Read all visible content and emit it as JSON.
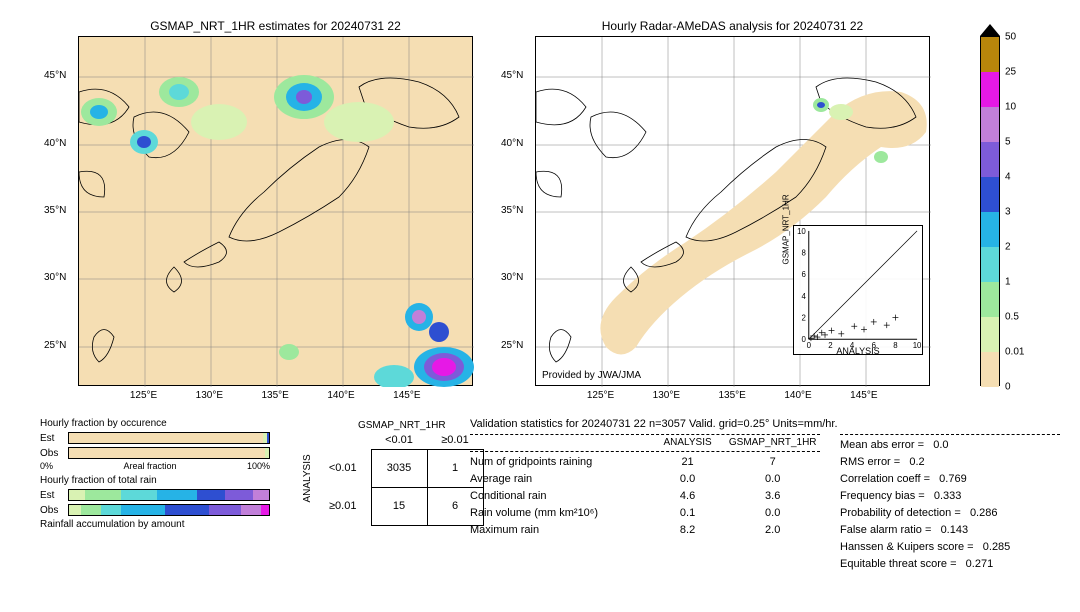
{
  "left_map": {
    "title": "GSMAP_NRT_1HR estimates for 20240731 22",
    "bg_color": "#f5deb3",
    "x_ticks": [
      "125°E",
      "130°E",
      "135°E",
      "140°E",
      "145°E"
    ],
    "y_ticks": [
      "25°N",
      "30°N",
      "35°N",
      "40°N",
      "45°N"
    ],
    "lon_min": 120,
    "lon_max": 150,
    "lat_min": 22,
    "lat_max": 48
  },
  "right_map": {
    "title": "Hourly Radar-AMeDAS analysis for 20240731 22",
    "bg_color": "#ffffff",
    "provider": "Provided by JWA/JMA",
    "x_ticks": [
      "125°E",
      "130°E",
      "135°E",
      "140°E",
      "145°E"
    ],
    "y_ticks": [
      "25°N",
      "30°N",
      "35°N",
      "40°N",
      "45°N"
    ]
  },
  "colorbar": {
    "levels": [
      {
        "v": "50",
        "c": "#000000",
        "h": 0
      },
      {
        "v": "25",
        "c": "#b8860b",
        "h": 34
      },
      {
        "v": "10",
        "c": "#e619e6",
        "h": 34
      },
      {
        "v": "5",
        "c": "#c17fd9",
        "h": 34
      },
      {
        "v": "4",
        "c": "#7d5bd9",
        "h": 34
      },
      {
        "v": "3",
        "c": "#2e4fd1",
        "h": 34
      },
      {
        "v": "2",
        "c": "#26b3e6",
        "h": 34
      },
      {
        "v": "1",
        "c": "#5dd9d9",
        "h": 34
      },
      {
        "v": "0.5",
        "c": "#9de89d",
        "h": 34
      },
      {
        "v": "0.01",
        "c": "#d9f2b3",
        "h": 34
      },
      {
        "v": "0",
        "c": "#f5deb3",
        "h": 34
      }
    ],
    "arrow_top_color": "#000000"
  },
  "occ_bar": {
    "title": "Hourly fraction by occurence",
    "rows": [
      {
        "label": "Est",
        "segments": [
          {
            "c": "#f5deb3",
            "w": 97
          },
          {
            "c": "#d9f2b3",
            "w": 2
          },
          {
            "c": "#2e4fd1",
            "w": 1
          }
        ]
      },
      {
        "label": "Obs",
        "segments": [
          {
            "c": "#f5deb3",
            "w": 98
          },
          {
            "c": "#d9f2b3",
            "w": 2
          }
        ]
      }
    ],
    "x_left": "0%",
    "x_center": "Areal fraction",
    "x_right": "100%"
  },
  "total_bar": {
    "title": "Hourly fraction of total rain",
    "rows": [
      {
        "label": "Est",
        "segments": [
          {
            "c": "#d9f2b3",
            "w": 8
          },
          {
            "c": "#9de89d",
            "w": 18
          },
          {
            "c": "#5dd9d9",
            "w": 18
          },
          {
            "c": "#26b3e6",
            "w": 20
          },
          {
            "c": "#2e4fd1",
            "w": 14
          },
          {
            "c": "#7d5bd9",
            "w": 14
          },
          {
            "c": "#c17fd9",
            "w": 8
          }
        ]
      },
      {
        "label": "Obs",
        "segments": [
          {
            "c": "#d9f2b3",
            "w": 6
          },
          {
            "c": "#9de89d",
            "w": 10
          },
          {
            "c": "#5dd9d9",
            "w": 10
          },
          {
            "c": "#26b3e6",
            "w": 22
          },
          {
            "c": "#2e4fd1",
            "w": 22
          },
          {
            "c": "#7d5bd9",
            "w": 16
          },
          {
            "c": "#c17fd9",
            "w": 10
          },
          {
            "c": "#e619e6",
            "w": 4
          }
        ]
      }
    ],
    "footer": "Rainfall accumulation by amount"
  },
  "contingency": {
    "col_title": "GSMAP_NRT_1HR",
    "row_title": "ANALYSIS",
    "col_headers": [
      "<0.01",
      "≥0.01"
    ],
    "row_headers": [
      "<0.01",
      "≥0.01"
    ],
    "cells": [
      [
        "3035",
        "1"
      ],
      [
        "15",
        "6"
      ]
    ]
  },
  "stats_title": "Validation statistics for 20240731 22  n=3057 Valid. grid=0.25°  Units=mm/hr.",
  "stats_cols": [
    "",
    "ANALYSIS",
    "GSMAP_NRT_1HR"
  ],
  "stats_rows": [
    {
      "k": "Num of gridpoints raining",
      "v1": "21",
      "v2": "7"
    },
    {
      "k": "Average rain",
      "v1": "0.0",
      "v2": "0.0"
    },
    {
      "k": "Conditional rain",
      "v1": "4.6",
      "v2": "3.6"
    },
    {
      "k": "Rain volume (mm km²10⁶)",
      "v1": "0.1",
      "v2": "0.0"
    },
    {
      "k": "Maximum rain",
      "v1": "8.2",
      "v2": "2.0"
    }
  ],
  "metrics": [
    {
      "k": "Mean abs error =",
      "v": "0.0"
    },
    {
      "k": "RMS error =",
      "v": "0.2"
    },
    {
      "k": "Correlation coeff =",
      "v": "0.769"
    },
    {
      "k": "Frequency bias =",
      "v": "0.333"
    },
    {
      "k": "Probability of detection =",
      "v": "0.286"
    },
    {
      "k": "False alarm ratio =",
      "v": "0.143"
    },
    {
      "k": "Hanssen & Kuipers score =",
      "v": "0.285"
    },
    {
      "k": "Equitable threat score =",
      "v": "0.271"
    }
  ],
  "scatter": {
    "xlabel": "ANALYSIS",
    "ylabel": "GSMAP_NRT_1HR",
    "ticks": [
      "0",
      "2",
      "4",
      "6",
      "8",
      "10"
    ],
    "points": [
      {
        "x": 0.2,
        "y": 0.1
      },
      {
        "x": 0.5,
        "y": 0.3
      },
      {
        "x": 0.8,
        "y": 0.2
      },
      {
        "x": 1.2,
        "y": 0.6
      },
      {
        "x": 1.5,
        "y": 0.4
      },
      {
        "x": 2.1,
        "y": 0.8
      },
      {
        "x": 3.0,
        "y": 0.5
      },
      {
        "x": 4.2,
        "y": 1.2
      },
      {
        "x": 5.1,
        "y": 0.9
      },
      {
        "x": 6.0,
        "y": 1.6
      },
      {
        "x": 7.2,
        "y": 1.3
      },
      {
        "x": 8.0,
        "y": 2.0
      }
    ]
  }
}
